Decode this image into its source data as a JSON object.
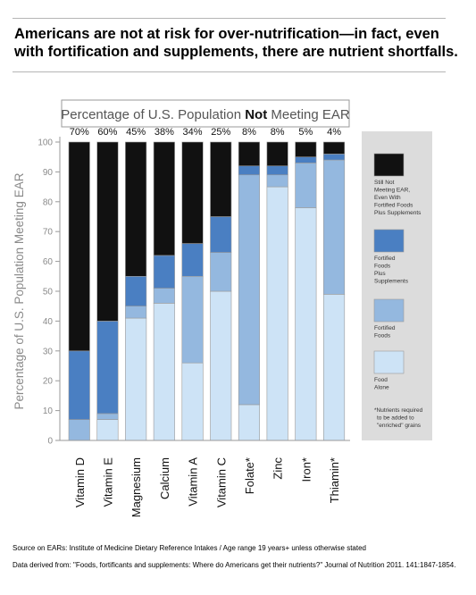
{
  "headline": {
    "line1": "Americans are not at risk for over-nutrification—in fact, even",
    "line2": "with fortification and supplements, there are nutrient shortfalls."
  },
  "footnotes": {
    "source": "Source on EARs: Institute of Medicine Dietary Reference Intakes / Age range 19 years+ unless otherwise stated",
    "data": "Data derived from: \"Foods, fortificants and supplements: Where do Americans get their nutrients?\" Journal of Nutrition 2011. 141:1847-1854."
  },
  "colors": {
    "still_not_meeting": "#111111",
    "fortified_plus_supplements": "#4a7fc2",
    "fortified_foods": "#94b8df",
    "food_alone": "#cde3f6",
    "legend_bg": "#dcdcdc",
    "axis": "#9a9a9a"
  },
  "chart_data": {
    "type": "bar",
    "stacked": true,
    "title_parts": [
      "Percentage of U.S. Population ",
      "Not",
      " Meeting EAR"
    ],
    "ylabel": "Percentage of U.S. Population Meeting EAR",
    "ylim": [
      0,
      100
    ],
    "yticks": [
      0,
      10,
      20,
      30,
      40,
      50,
      60,
      70,
      80,
      90,
      100
    ],
    "categories": [
      "Vitamin D",
      "Vitamin E",
      "Magnesium",
      "Calcium",
      "Vitamin A",
      "Vitamin C",
      "Folate*",
      "Zinc",
      "Iron*",
      "Thiamin*"
    ],
    "not_meeting_labels": [
      "70%",
      "60%",
      "45%",
      "38%",
      "34%",
      "25%",
      "8%",
      "8%",
      "5%",
      "4%"
    ],
    "series": [
      {
        "key": "food_alone",
        "name": "Food Alone",
        "values": [
          0,
          7,
          41,
          46,
          26,
          50,
          12,
          85,
          78,
          49
        ]
      },
      {
        "key": "fortified_foods",
        "name": "Fortified Foods",
        "values": [
          7,
          2,
          4,
          5,
          29,
          13,
          77,
          4,
          15,
          45
        ]
      },
      {
        "key": "fortified_plus_supplements",
        "name": "Fortified Foods Plus Supplements",
        "values": [
          23,
          31,
          10,
          11,
          11,
          12,
          3,
          3,
          2,
          2
        ]
      },
      {
        "key": "still_not_meeting",
        "name": "Still Not Meeting EAR, Even With Fortified Foods Plus Supplements",
        "values": [
          70,
          60,
          45,
          38,
          34,
          25,
          8,
          8,
          5,
          4
        ]
      }
    ],
    "legend": {
      "placement": "right",
      "items": [
        {
          "key": "still_not_meeting",
          "lines": [
            "Still Not",
            "Meeting EAR,",
            "Even With",
            "Fortified Foods",
            "Plus Supplements"
          ]
        },
        {
          "key": "fortified_plus_supplements",
          "lines": [
            "Fortified",
            "Foods",
            "Plus",
            "Supplements"
          ]
        },
        {
          "key": "fortified_foods",
          "lines": [
            "Fortified",
            "Foods"
          ]
        },
        {
          "key": "food_alone",
          "lines": [
            "Food",
            "Alone"
          ]
        }
      ],
      "note_lines": [
        "*Nutrients required",
        "to be added to",
        "\"enriched\" grains"
      ]
    }
  }
}
